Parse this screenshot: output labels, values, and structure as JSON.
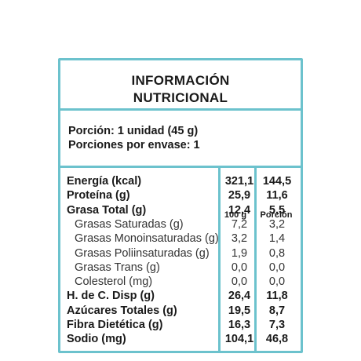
{
  "title_line1": "INFORMACIÓN",
  "title_line2": "NUTRICIONAL",
  "serving_size": "Porción: 1 unidad (45 g)",
  "servings_per_package": "Porciones por envase: 1",
  "col_100g": "100 g",
  "col_portion": "Porción",
  "accent_color": "#6cc2cd",
  "rows": [
    {
      "name": "Energía (kcal)",
      "v100": "321,1",
      "vpor": "144,5",
      "level": "main"
    },
    {
      "name": "Proteína (g)",
      "v100": "25,9",
      "vpor": "11,6",
      "level": "main"
    },
    {
      "name": "Grasa Total (g)",
      "v100": "12,4",
      "vpor": "5,5",
      "level": "main"
    },
    {
      "name": "Grasas Saturadas (g)",
      "v100": "7,2",
      "vpor": "3,2",
      "level": "sub"
    },
    {
      "name": "Grasas Monoinsaturadas (g)",
      "v100": "3,2",
      "vpor": "1,4",
      "level": "sub"
    },
    {
      "name": "Grasas Poliinsaturadas (g)",
      "v100": "1,9",
      "vpor": "0,8",
      "level": "sub"
    },
    {
      "name": "Grasas Trans (g)",
      "v100": "0,0",
      "vpor": "0,0",
      "level": "sub"
    },
    {
      "name": "Colesterol (mg)",
      "v100": "0,0",
      "vpor": "0,0",
      "level": "sub"
    },
    {
      "name": "H. de C. Disp (g)",
      "v100": "26,4",
      "vpor": "11,8",
      "level": "main"
    },
    {
      "name": "Azúcares Totales (g)",
      "v100": "19,5",
      "vpor": "8,7",
      "level": "main"
    },
    {
      "name": "Fibra Dietética (g)",
      "v100": "16,3",
      "vpor": "7,3",
      "level": "main"
    },
    {
      "name": "Sodio (mg)",
      "v100": "104,1",
      "vpor": "46,8",
      "level": "main"
    }
  ]
}
